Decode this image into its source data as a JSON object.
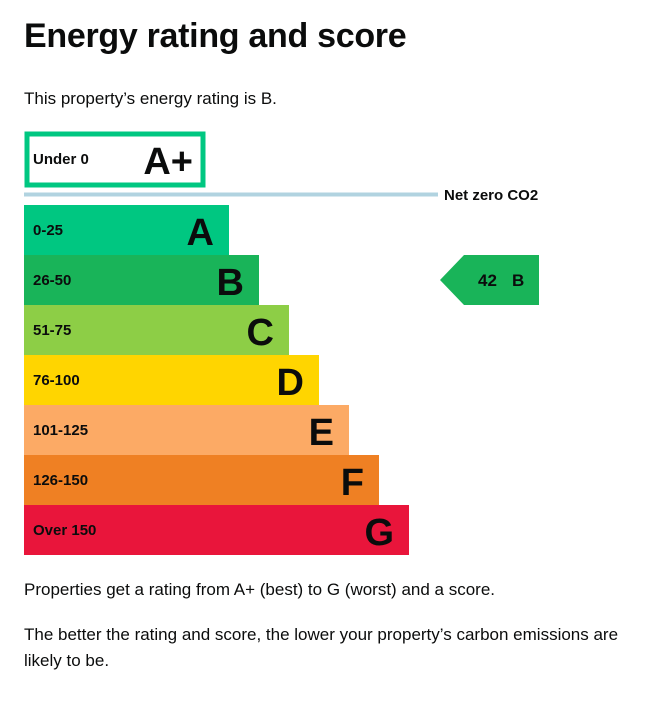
{
  "page": {
    "title": "Energy rating and score",
    "intro": "This property’s energy rating is B.",
    "footnote_1": "Properties get a rating from A+ (best) to G (worst) and a score.",
    "footnote_2": "The better the rating and score, the lower your property’s carbon emissions are likely to be."
  },
  "chart_data": {
    "type": "bar",
    "title": "Energy rating and score",
    "bands": [
      {
        "band": "A+",
        "range": "Under 0",
        "color": "#00c781",
        "outlined": true
      },
      {
        "band": "A",
        "range": "0-25",
        "color": "#00c781"
      },
      {
        "band": "B",
        "range": "26-50",
        "color": "#19b459"
      },
      {
        "band": "C",
        "range": "51-75",
        "color": "#8dce46"
      },
      {
        "band": "D",
        "range": "76-100",
        "color": "#ffd500"
      },
      {
        "band": "E",
        "range": "101-125",
        "color": "#fcaa65"
      },
      {
        "band": "F",
        "range": "126-150",
        "color": "#ef8023"
      },
      {
        "band": "G",
        "range": "Over 150",
        "color": "#e9153b"
      }
    ],
    "net_zero": {
      "label": "Net zero CO2",
      "line_color": "#b1d3e0"
    },
    "current": {
      "score": "42",
      "band": "B",
      "color": "#19b459"
    }
  }
}
